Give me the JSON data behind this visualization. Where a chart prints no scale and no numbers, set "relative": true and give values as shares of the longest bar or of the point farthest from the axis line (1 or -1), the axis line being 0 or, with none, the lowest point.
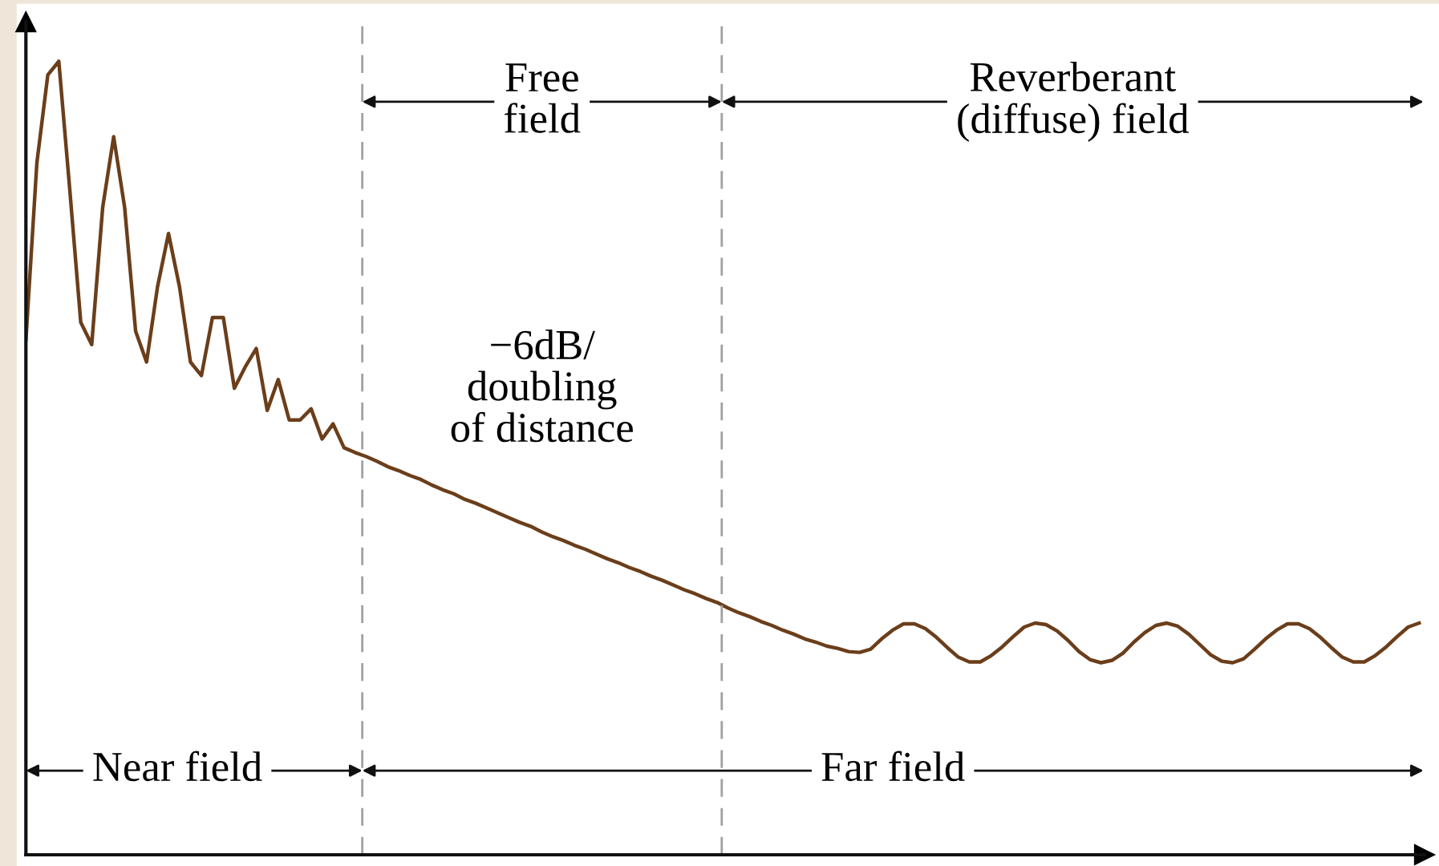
{
  "chart_data": {
    "type": "line",
    "relative": true,
    "categories": [
      null,
      null,
      null,
      null,
      null,
      null,
      null,
      null,
      null,
      null,
      null,
      null,
      null,
      null,
      null,
      null,
      null,
      null,
      null,
      null,
      null,
      null,
      null,
      null,
      null,
      null,
      null,
      null,
      null,
      null,
      null,
      null,
      null,
      null,
      null,
      null,
      null,
      null,
      null,
      null,
      null,
      null,
      null,
      null,
      null,
      null,
      null,
      null,
      null,
      null,
      null,
      null,
      null,
      null,
      null,
      null,
      null,
      null,
      null,
      null,
      null,
      null,
      null,
      null,
      null,
      null,
      null,
      null,
      null,
      null,
      null,
      null,
      null,
      null,
      null,
      null,
      null,
      null,
      null,
      null,
      null,
      null,
      null,
      null,
      null,
      null,
      null,
      null,
      null,
      null,
      null,
      null,
      null,
      null,
      null,
      null,
      null,
      null,
      null,
      null,
      null,
      null,
      null,
      null,
      null,
      null,
      null,
      null,
      null,
      null,
      null,
      null,
      null,
      null,
      null,
      null,
      null,
      null,
      null,
      null,
      null,
      null,
      null,
      null,
      null,
      null,
      null,
      null
    ],
    "series": [
      {
        "color": "#6b3e1a",
        "values": [
          0.649,
          0.872,
          0.983,
          1.0,
          0.838,
          0.671,
          0.643,
          0.816,
          0.905,
          0.816,
          0.66,
          0.621,
          0.716,
          0.783,
          0.716,
          0.621,
          0.604,
          0.677,
          0.677,
          0.588,
          0.615,
          0.638,
          0.56,
          0.599,
          0.548,
          0.548,
          0.562,
          0.524,
          0.543,
          0.513,
          0.507,
          0.502,
          0.496,
          0.489,
          0.484,
          0.478,
          0.473,
          0.466,
          0.46,
          0.455,
          0.448,
          0.443,
          0.437,
          0.431,
          0.425,
          0.419,
          0.414,
          0.407,
          0.401,
          0.396,
          0.39,
          0.385,
          0.379,
          0.373,
          0.368,
          0.362,
          0.357,
          0.351,
          0.346,
          0.34,
          0.334,
          0.329,
          0.323,
          0.318,
          0.311,
          0.305,
          0.3,
          0.294,
          0.289,
          0.283,
          0.278,
          0.272,
          0.268,
          0.263,
          0.26,
          0.256,
          0.255,
          0.259,
          0.272,
          0.283,
          0.291,
          0.291,
          0.285,
          0.274,
          0.261,
          0.249,
          0.243,
          0.243,
          0.251,
          0.262,
          0.275,
          0.287,
          0.292,
          0.29,
          0.282,
          0.27,
          0.256,
          0.246,
          0.242,
          0.245,
          0.254,
          0.268,
          0.28,
          0.289,
          0.292,
          0.288,
          0.278,
          0.265,
          0.252,
          0.244,
          0.242,
          0.247,
          0.259,
          0.272,
          0.283,
          0.291,
          0.291,
          0.285,
          0.274,
          0.261,
          0.249,
          0.243,
          0.243,
          0.251,
          0.262,
          0.275,
          0.287,
          0.292
        ]
      }
    ],
    "annotations": [
      "Free\nfield",
      "Reverberant\n(diffuse) field",
      "−6dB/\ndoubling\nof distance",
      "Near field",
      "Far field"
    ],
    "legend": false,
    "marker": "none",
    "line_style": "solid"
  }
}
